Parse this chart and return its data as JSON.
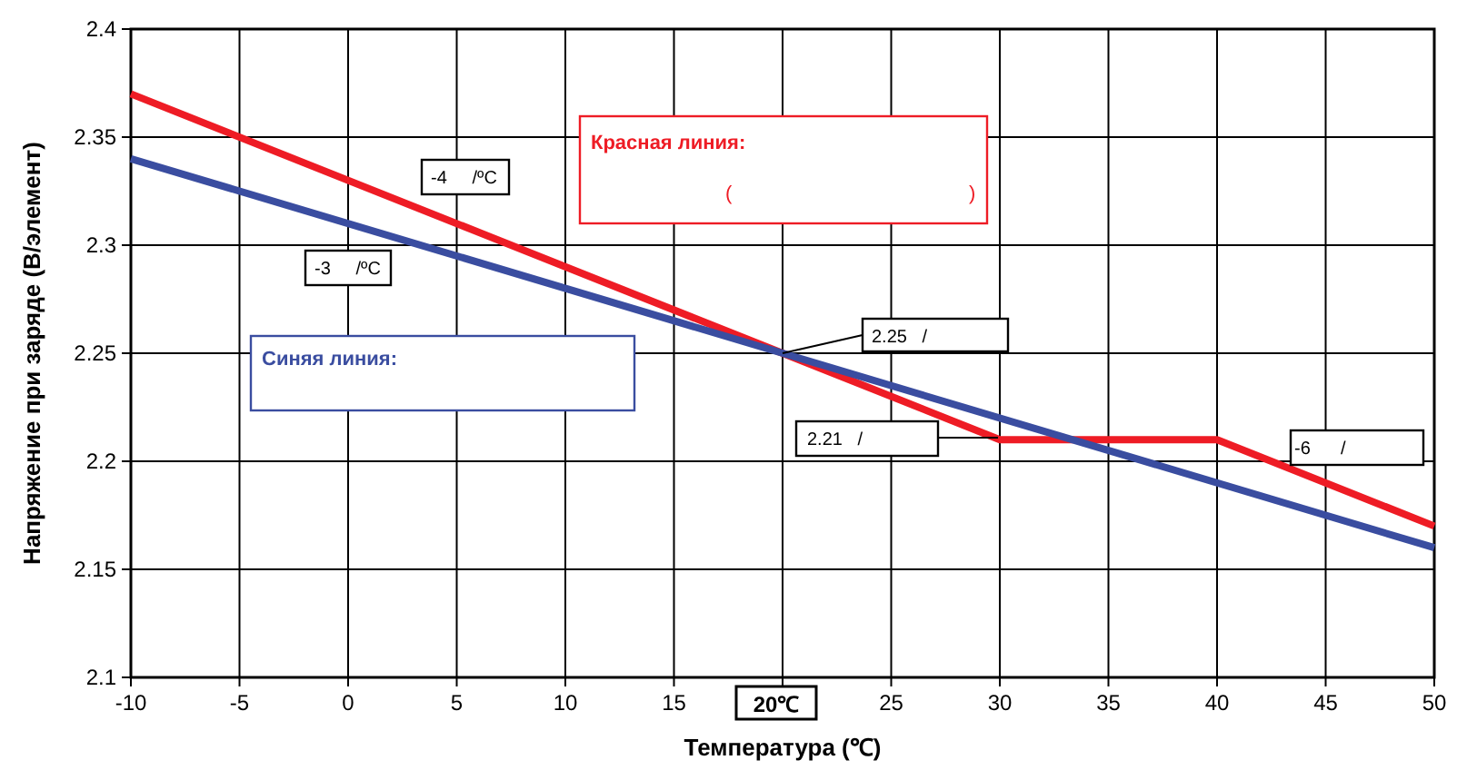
{
  "chart_data": {
    "type": "line",
    "xlabel": "Температура (℃)",
    "ylabel": "Напряжение при заряде (В/элемент)",
    "xlim": [
      -10,
      50
    ],
    "ylim": [
      2.1,
      2.4
    ],
    "xticks": [
      -10,
      -5,
      0,
      5,
      10,
      15,
      {
        "value": 20,
        "label": null
      },
      25,
      30,
      35,
      40,
      45,
      50
    ],
    "yticks": [
      2.1,
      2.15,
      2.2,
      2.25,
      2.3,
      2.35,
      2.4
    ],
    "grid": true,
    "line_style": "solid",
    "marker": "none",
    "series": [
      {
        "color": "#ee1c25",
        "x": [
          -10,
          20,
          30,
          40,
          50
        ],
        "values": [
          2.37,
          2.25,
          2.21,
          2.21,
          2.17
        ]
      },
      {
        "color": "#3a4da0",
        "x": [
          -10,
          50
        ],
        "values": [
          2.34,
          2.16
        ]
      }
    ],
    "annotations": [
      "-4     /ºC",
      "Красная линия:",
      "(",
      ")",
      "-3     /ºC",
      "Синяя линия:",
      {
        "text": "2.25   /",
        "x": 20,
        "y": 2.25
      },
      "2.21   /",
      "-6      /",
      "20℃"
    ]
  }
}
